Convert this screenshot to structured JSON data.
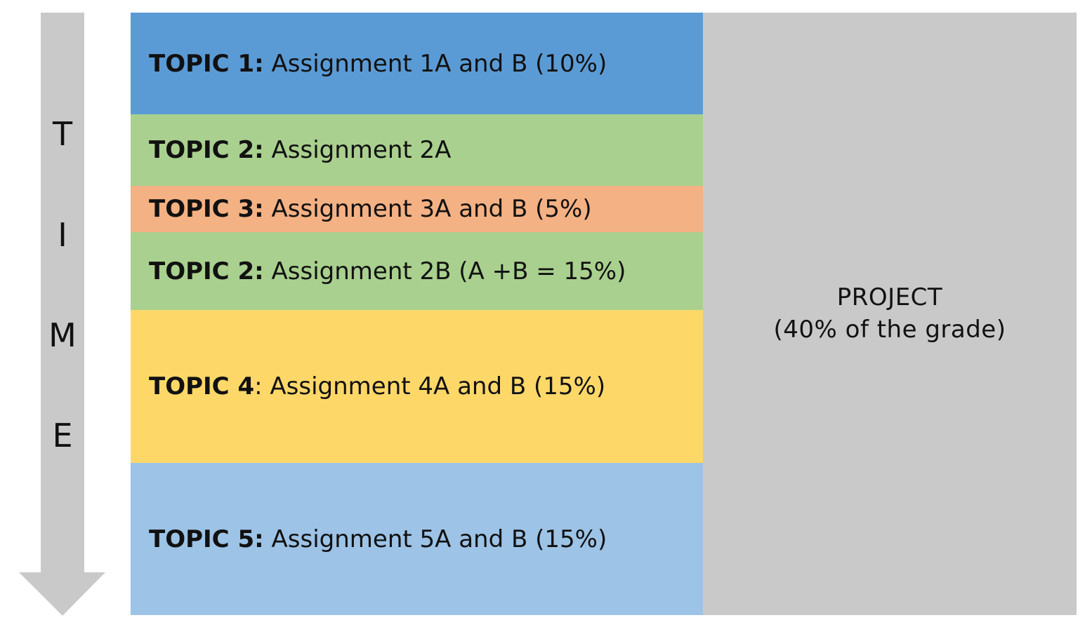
{
  "time_axis": {
    "letters": [
      "T",
      "I",
      "M",
      "E"
    ],
    "arrow_color": "#c9c9c9"
  },
  "topics": [
    {
      "key": "TOPIC 1:",
      "text": " Assignment 1A and B (10%)",
      "color": "#5b9bd5"
    },
    {
      "key": "TOPIC 2:",
      "text": " Assignment 2A",
      "color": "#a9d08e"
    },
    {
      "key": "TOPIC 3:",
      "text": " Assignment 3A and B (5%)",
      "color": "#f4b183"
    },
    {
      "key": "TOPIC 2:",
      "text": " Assignment 2B (A +B = 15%)",
      "color": "#a9d08e"
    },
    {
      "key": "TOPIC 4",
      "text": ": Assignment 4A and B (15%)",
      "color": "#fdd869"
    },
    {
      "key": "TOPIC 5:",
      "text": " Assignment 5A and B (15%)",
      "color": "#9dc3e6"
    }
  ],
  "project": {
    "line1": "PROJECT",
    "line2": "(40% of the grade)",
    "color": "#c9c9c9"
  }
}
